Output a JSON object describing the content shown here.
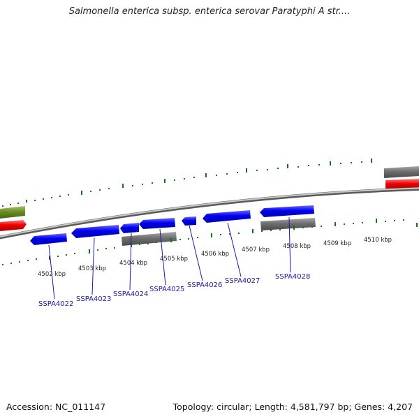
{
  "title": "Salmonella enterica subsp. enterica serovar Paratyphi A str....",
  "footer": {
    "accession": "Accession: NC_011147",
    "summary": "Topology: circular; Length: 4,581,797 bp; Genes: 4,207"
  },
  "colors": {
    "forward_cds": "#0000ee",
    "gray_feature": "#6e6e6e",
    "rna_red": "#ee0000",
    "other_green": "#6b8e23",
    "tick_green": "#117711",
    "gene_label": "#1a1aa8",
    "backbone": "#8c8c8c"
  },
  "kbp_labels": [
    "4502 kbp",
    "4503 kbp",
    "4504 kbp",
    "4505 kbp",
    "4506 kbp",
    "4507 kbp",
    "4508 kbp",
    "4509 kbp",
    "4510 kbp"
  ],
  "genes": [
    "SSPA4022",
    "SSPA4023",
    "SSPA4024",
    "SSPA4025",
    "SSPA4026",
    "SSPA4027",
    "SSPA4028"
  ]
}
